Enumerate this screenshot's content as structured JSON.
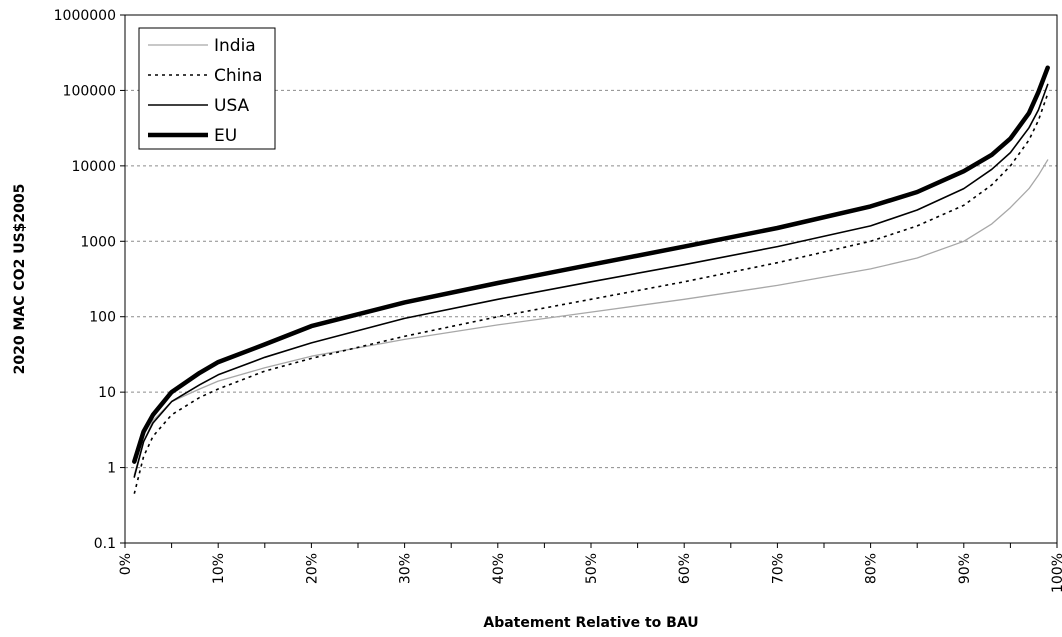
{
  "chart_data": {
    "type": "line",
    "title": "",
    "xlabel": "Abatement Relative to BAU",
    "ylabel": "2020 MAC CO2 US$2005",
    "y_scale": "log",
    "ylim": [
      0.1,
      1000000
    ],
    "xlim": [
      0,
      1
    ],
    "y_ticks": [
      0.1,
      1,
      10,
      100,
      1000,
      10000,
      100000,
      1000000
    ],
    "y_tick_labels": [
      "0.1",
      "1",
      "10",
      "100",
      "1000",
      "10000",
      "100000",
      "1000000"
    ],
    "x_ticks": [
      0,
      0.1,
      0.2,
      0.3,
      0.4,
      0.5,
      0.6,
      0.7,
      0.8,
      0.9,
      1.0
    ],
    "x_tick_labels": [
      "0%",
      "10%",
      "20%",
      "30%",
      "40%",
      "50%",
      "60%",
      "70%",
      "80%",
      "90%",
      "100%"
    ],
    "grid": "horizontal-dashed",
    "legend_position": "top-left",
    "x": [
      0.01,
      0.02,
      0.03,
      0.05,
      0.08,
      0.1,
      0.15,
      0.2,
      0.3,
      0.4,
      0.5,
      0.6,
      0.7,
      0.8,
      0.85,
      0.9,
      0.93,
      0.95,
      0.97,
      0.98,
      0.99
    ],
    "series": [
      {
        "name": "India",
        "style": "thin-gray",
        "color": "#aaaaaa",
        "values": [
          0.8,
          2.2,
          4.2,
          7.5,
          11,
          14,
          21,
          30,
          50,
          78,
          115,
          170,
          260,
          430,
          600,
          1000,
          1700,
          2800,
          5000,
          7500,
          12000
        ]
      },
      {
        "name": "China",
        "style": "dotted",
        "color": "#000000",
        "values": [
          0.45,
          1.4,
          2.6,
          5.0,
          8.5,
          11,
          19,
          28,
          55,
          100,
          170,
          290,
          520,
          1000,
          1600,
          3000,
          5600,
          10000,
          22000,
          40000,
          90000
        ]
      },
      {
        "name": "USA",
        "style": "thin-solid",
        "color": "#000000",
        "values": [
          0.75,
          2.2,
          3.9,
          7.5,
          12.5,
          17,
          29,
          45,
          95,
          170,
          290,
          490,
          850,
          1600,
          2600,
          5000,
          9000,
          15000,
          32000,
          55000,
          120000
        ]
      },
      {
        "name": "EU",
        "style": "thick-solid",
        "color": "#000000",
        "values": [
          1.2,
          3.0,
          5.0,
          10,
          18,
          25,
          43,
          75,
          155,
          280,
          490,
          850,
          1500,
          2900,
          4500,
          8500,
          14000,
          23000,
          50000,
          95000,
          200000
        ]
      }
    ]
  }
}
